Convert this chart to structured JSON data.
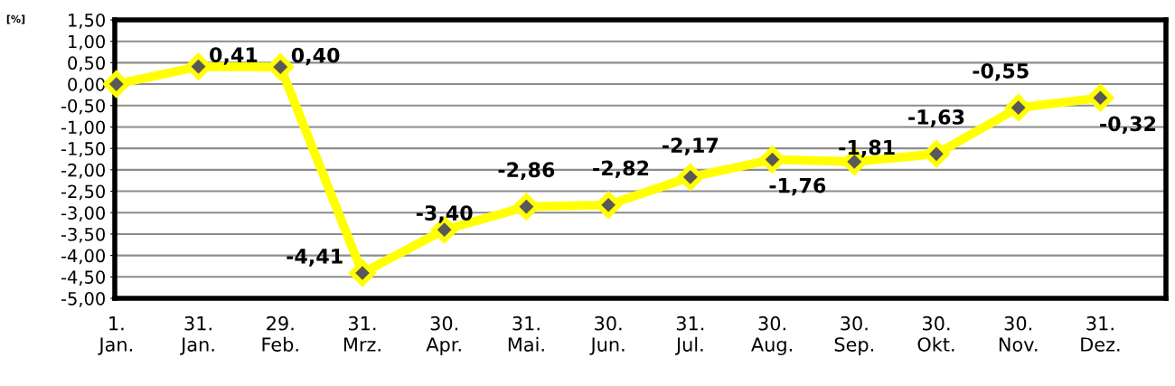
{
  "chart_data": {
    "type": "line",
    "ylabel": "[%]",
    "categories": [
      "1.\nJan.",
      "31.\nJan.",
      "29.\nFeb.",
      "31.\nMrz.",
      "30.\nApr.",
      "31.\nMai.",
      "30.\nJun.",
      "31.\nJul.",
      "30.\nAug.",
      "30.\nSep.",
      "30.\nOkt.",
      "30.\nNov.",
      "31.\nDez."
    ],
    "series": [
      {
        "color": "#ffff00",
        "values": [
          0.0,
          0.41,
          0.4,
          -4.41,
          -3.4,
          -2.86,
          -2.82,
          -2.17,
          -1.76,
          -1.81,
          -1.63,
          -0.55,
          -0.32
        ],
        "value_labels": [
          null,
          "0,41",
          "0,40",
          "-4,41",
          "-3,40",
          "-2,86",
          "-2,82",
          "-2,17",
          "-1,76",
          "-1,81",
          "-1,63",
          "-0,55",
          "-0,32"
        ]
      }
    ],
    "marker": "diamond",
    "line_style": "solid",
    "grid": "y",
    "legend": false,
    "ylim": [
      -5.0,
      1.5
    ],
    "yticks": [
      {
        "value": 1.5,
        "label": "1,50"
      },
      {
        "value": 1.0,
        "label": "1,00"
      },
      {
        "value": 0.5,
        "label": "0,50"
      },
      {
        "value": 0.0,
        "label": "0,00"
      },
      {
        "value": -0.5,
        "label": "-0,50"
      },
      {
        "value": -1.0,
        "label": "-1,00"
      },
      {
        "value": -1.5,
        "label": "-1,50"
      },
      {
        "value": -2.0,
        "label": "-2,00"
      },
      {
        "value": -2.5,
        "label": "-2,50"
      },
      {
        "value": -3.0,
        "label": "-3,00"
      },
      {
        "value": -3.5,
        "label": "-3,50"
      },
      {
        "value": -4.0,
        "label": "-4,00"
      },
      {
        "value": -4.5,
        "label": "-4,50"
      },
      {
        "value": -5.0,
        "label": "-5,00"
      }
    ]
  }
}
